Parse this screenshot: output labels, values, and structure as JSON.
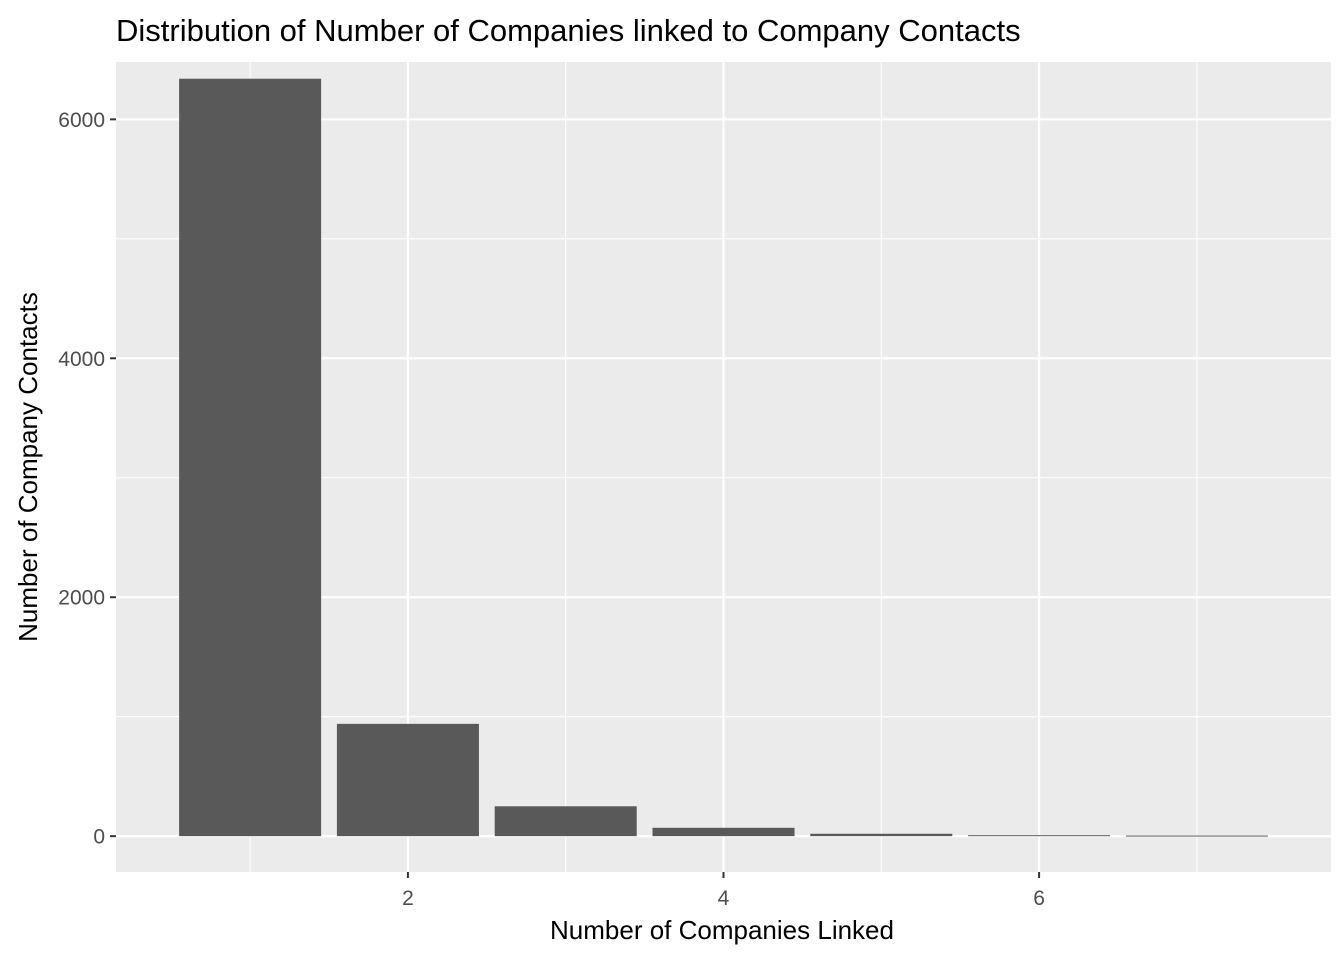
{
  "chart_data": {
    "type": "bar",
    "title": "Distribution of Number of Companies linked to Company Contacts",
    "xlabel": "Number of Companies Linked",
    "ylabel": "Number of Company Contacts",
    "x": [
      1,
      2,
      3,
      4,
      5,
      6,
      7
    ],
    "values": [
      6340,
      940,
      250,
      70,
      20,
      8,
      5
    ],
    "xlim": [
      0.15,
      7.85
    ],
    "ylim": [
      -300,
      6480
    ],
    "x_ticks": [
      2,
      4,
      6
    ],
    "x_tick_labels": [
      "2",
      "4",
      "6"
    ],
    "y_ticks": [
      0,
      2000,
      4000,
      6000
    ],
    "y_tick_labels": [
      "0",
      "2000",
      "4000",
      "6000"
    ],
    "grid": true,
    "legend": "none",
    "colors": {
      "bar": "#595959",
      "panel_background": "#ebebeb",
      "grid_line": "#ffffff",
      "tick_label": "#4d4d4d",
      "tick_mark": "#333333"
    }
  }
}
